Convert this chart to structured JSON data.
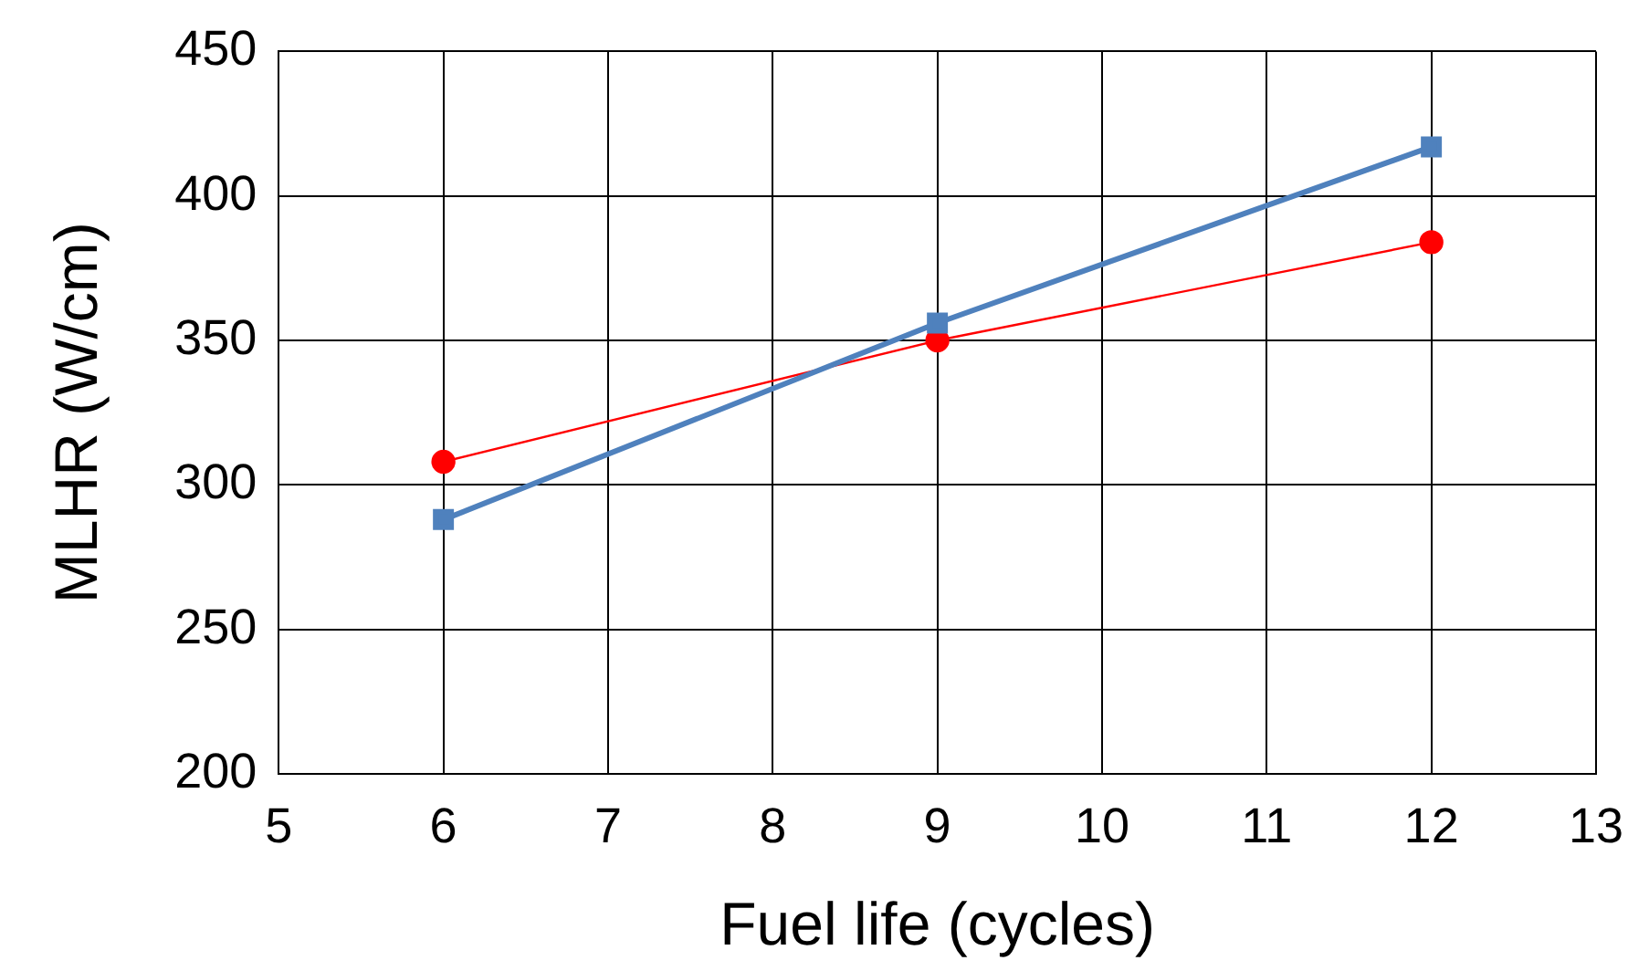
{
  "chart_data": {
    "type": "line",
    "xlabel": "Fuel life (cycles)",
    "ylabel": "MLHR (W/cm)",
    "x": [
      6,
      9,
      12
    ],
    "series": [
      {
        "color": "#4f81bd",
        "values": [
          288,
          356,
          417
        ],
        "marker": "square",
        "line_style": "solid"
      },
      {
        "color": "#ff0000",
        "values": [
          308,
          350,
          384
        ],
        "marker": "circle",
        "line_style": "solid"
      }
    ],
    "xlim": [
      5,
      13
    ],
    "xticks": [
      5,
      6,
      7,
      8,
      9,
      10,
      11,
      12,
      13
    ],
    "ylim": [
      200,
      450
    ],
    "yticks": [
      200,
      250,
      300,
      350,
      400,
      450
    ],
    "grid": true,
    "legend": false
  }
}
